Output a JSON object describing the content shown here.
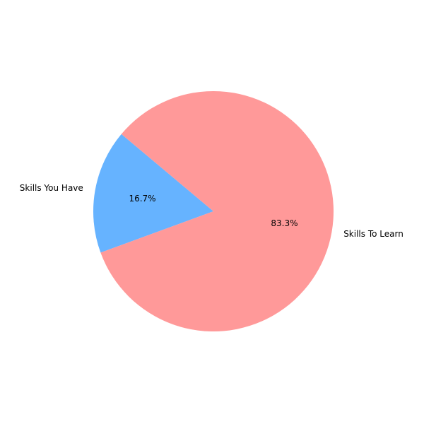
{
  "chart_data": {
    "type": "pie",
    "title": "",
    "start_angle_deg": 140,
    "direction": "counterclockwise",
    "slices": [
      {
        "label": "Skills You Have",
        "value": 16.7,
        "pct_text": "16.7%",
        "color": "#66b3ff"
      },
      {
        "label": "Skills To Learn",
        "value": 83.3,
        "pct_text": "83.3%",
        "color": "#ff9999"
      }
    ]
  }
}
